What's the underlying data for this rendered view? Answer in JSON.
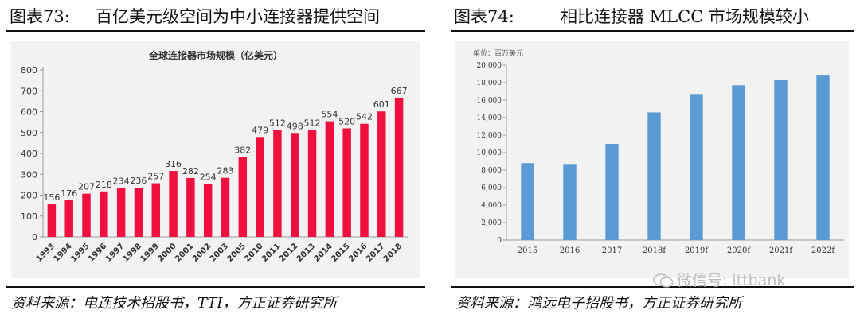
{
  "left": {
    "fig_num": "图表73:",
    "fig_title": "百亿美元级空间为中小连接器提供空间",
    "source": "资料来源：电连技术招股书，TTI，方正证券研究所"
  },
  "right": {
    "fig_num": "图表74:",
    "fig_title": "相比连接器 MLCC 市场规模较小",
    "source": "资料来源：鸿远电子招股书，方正证券研究所"
  },
  "watermark": {
    "text": "微信号: ittbank",
    "icon": "wechat-icon"
  },
  "chart_data": [
    {
      "type": "bar",
      "title": "全球连接器市场规模（亿美元）",
      "subtitle": "",
      "xlabel": "",
      "ylabel": "",
      "ylim": [
        0,
        800
      ],
      "yticks": [
        0,
        100,
        200,
        300,
        400,
        500,
        600,
        700,
        800
      ],
      "grid": false,
      "legend": "none",
      "color": "#f0103f",
      "data_labels": true,
      "categories": [
        "1993",
        "1994",
        "1995",
        "1996",
        "1997",
        "1998",
        "1999",
        "2000",
        "2001",
        "2002",
        "2003",
        "2005",
        "2010",
        "2011",
        "2012",
        "2013",
        "2014",
        "2015",
        "2016",
        "2017",
        "2018"
      ],
      "values": [
        156,
        176,
        207,
        218,
        234,
        236,
        257,
        316,
        282,
        254,
        283,
        382,
        479,
        512,
        498,
        512,
        554,
        520,
        542,
        601,
        667
      ]
    },
    {
      "type": "bar",
      "title": "",
      "unit_label": "单位：百万美元",
      "xlabel": "",
      "ylabel": "",
      "ylim": [
        0,
        20000
      ],
      "yticks": [
        0,
        2000,
        4000,
        6000,
        8000,
        10000,
        12000,
        14000,
        16000,
        18000,
        20000
      ],
      "ytick_labels": [
        "0",
        "2,000",
        "4,000",
        "6,000",
        "8,000",
        "10,000",
        "12,000",
        "14,000",
        "16,000",
        "18,000",
        "20,000"
      ],
      "grid": false,
      "legend": "none",
      "color": "#5b9bd5",
      "data_labels": false,
      "categories": [
        "2015",
        "2016",
        "2017",
        "2018f",
        "2019f",
        "2020f",
        "2021f",
        "2022f"
      ],
      "values": [
        8800,
        8700,
        11000,
        14600,
        16700,
        17700,
        18300,
        18900
      ]
    }
  ]
}
